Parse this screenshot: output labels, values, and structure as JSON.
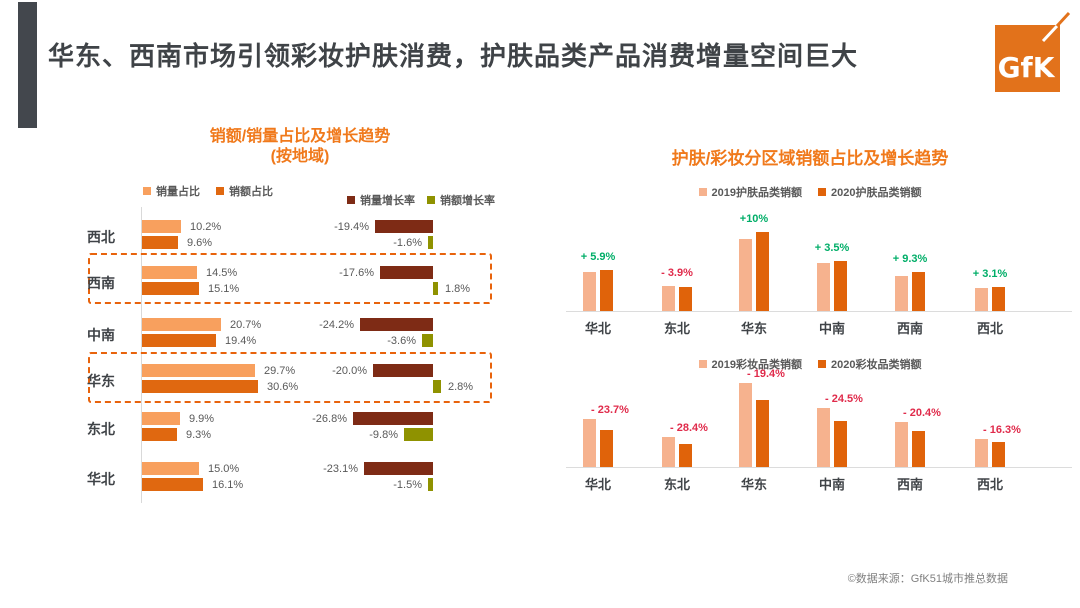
{
  "header": {
    "title": "华东、西南市场引领彩妆护肤消费，护肤品类产品消费增量空间巨大",
    "logo_text": "GfK"
  },
  "footer": {
    "source": "©数据来源：GfK51城市推总数据"
  },
  "right_panel_title": "护肤/彩妆分区域销额占比及增长趋势",
  "colors": {
    "accent_title_orange": "#F0791B",
    "light_orange": "#F8A05E",
    "dark_orange": "#E06810",
    "light_orange_2019": "#F6B28E",
    "dark_orange_2020": "#E0630A",
    "brown_growth": "#7E2B15",
    "olive_growth": "#8F9200",
    "green_label": "#00AE68",
    "red_label": "#E02B4B",
    "dash_box_orange": "#E8630C",
    "header_gray": "#3F4347",
    "label_gray": "#595959"
  },
  "chart_data": [
    {
      "id": "share-and-growth-by-region",
      "type": "bar",
      "orientation": "horizontal",
      "title": "销额/销量占比及增长趋势",
      "subtitle": "(按地域)",
      "categories": [
        "西北",
        "西南",
        "中南",
        "华东",
        "东北",
        "华北"
      ],
      "highlighted_categories": [
        "西南",
        "华东"
      ],
      "series": [
        {
          "name": "销量占比",
          "values": [
            10.2,
            14.5,
            20.7,
            29.7,
            9.9,
            15.0
          ]
        },
        {
          "name": "销额占比",
          "values": [
            9.6,
            15.1,
            19.4,
            30.6,
            9.3,
            16.1
          ]
        },
        {
          "name": "销量增长率",
          "values": [
            -19.4,
            -17.6,
            -24.2,
            -20.0,
            -26.8,
            -23.1
          ]
        },
        {
          "name": "销额增长率",
          "values": [
            -1.6,
            1.8,
            -3.6,
            2.8,
            -9.8,
            -1.5
          ]
        }
      ]
    },
    {
      "id": "skincare-sales-by-region",
      "type": "bar",
      "categories": [
        "华北",
        "东北",
        "华东",
        "中南",
        "西南",
        "西北"
      ],
      "series": [
        {
          "name": "2019护肤品类销额",
          "values": [
            15.3,
            9.8,
            28.2,
            18.8,
            13.7,
            9.0
          ]
        },
        {
          "name": "2020护肤品类销额",
          "values": [
            16.1,
            9.4,
            31.0,
            19.6,
            15.3,
            9.4
          ]
        }
      ],
      "growth_labels": [
        "+ 5.9%",
        "- 3.9%",
        "+10%",
        "+ 3.5%",
        "+ 9.3%",
        "+ 3.1%"
      ]
    },
    {
      "id": "makeup-sales-by-region",
      "type": "bar",
      "categories": [
        "华北",
        "东北",
        "华东",
        "中南",
        "西南",
        "西北"
      ],
      "series": [
        {
          "name": "2019彩妆品类销额",
          "values": [
            17.1,
            10.7,
            30.0,
            21.1,
            16.1,
            10.0
          ]
        },
        {
          "name": "2020彩妆品类销额",
          "values": [
            13.2,
            8.2,
            23.9,
            16.4,
            12.9,
            8.9
          ]
        }
      ],
      "growth_labels": [
        "- 23.7%",
        "- 28.4%",
        "- 19.4%",
        "- 24.5%",
        "- 20.4%",
        "- 16.3%"
      ]
    }
  ]
}
